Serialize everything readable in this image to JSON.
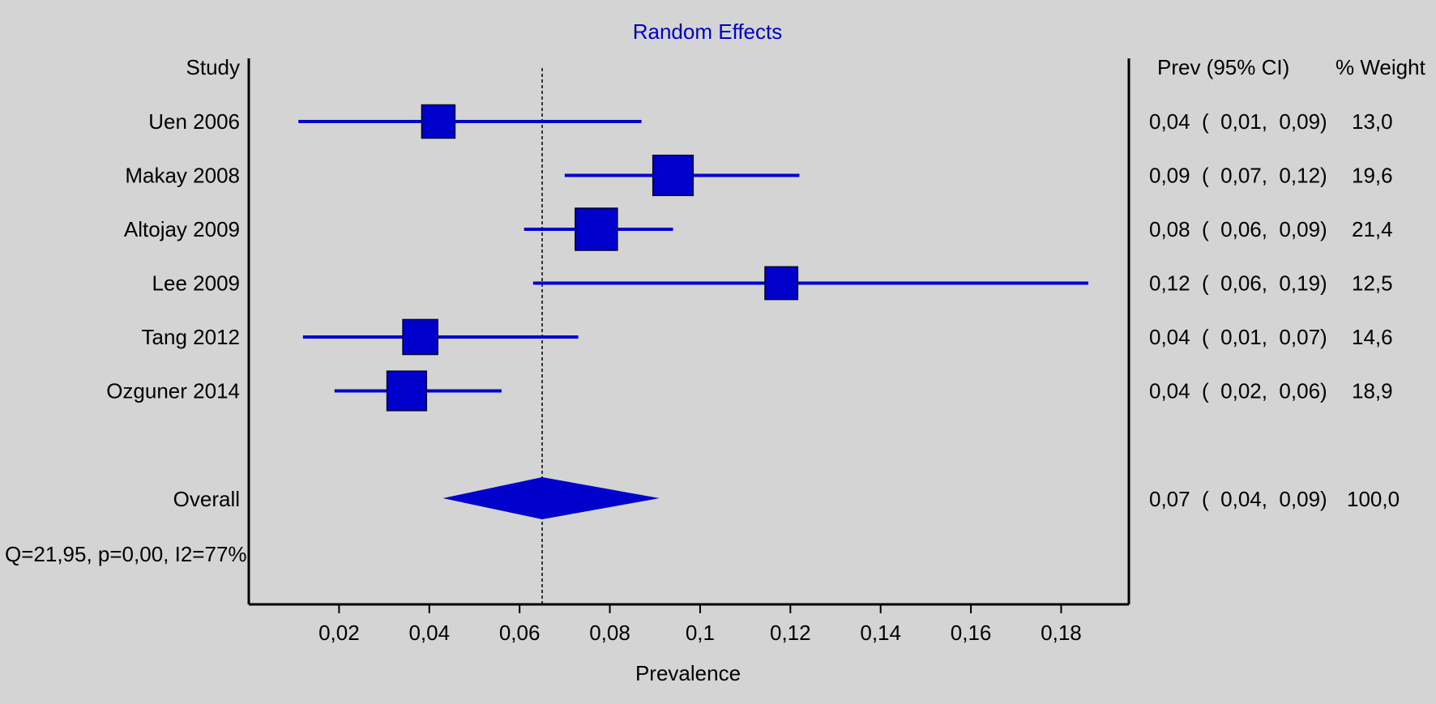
{
  "chart_data": {
    "type": "forest",
    "title": "Random Effects",
    "xlabel": "Prevalence",
    "study_header": "Study",
    "ci_header": "Prev (95% CI)",
    "weight_header": "% Weight",
    "xlim": [
      0.0,
      0.195
    ],
    "xticks": [
      0.02,
      0.04,
      0.06,
      0.08,
      0.1,
      0.12,
      0.14,
      0.16,
      0.18
    ],
    "xtick_labels": [
      "0,02",
      "0,04",
      "0,06",
      "0,08",
      "0,1",
      "0,12",
      "0,14",
      "0,16",
      "0,18"
    ],
    "reference_line": 0.065,
    "studies": [
      {
        "name": "Uen 2006",
        "prev": 0.042,
        "lower": 0.011,
        "upper": 0.087,
        "ci_text": "0,04  (  0,01,  0,09)",
        "weight": 13.0,
        "weight_text": "13,0"
      },
      {
        "name": "Makay 2008",
        "prev": 0.094,
        "lower": 0.07,
        "upper": 0.122,
        "ci_text": "0,09  (  0,07,  0,12)",
        "weight": 19.6,
        "weight_text": "19,6"
      },
      {
        "name": "Altojay 2009",
        "prev": 0.077,
        "lower": 0.061,
        "upper": 0.094,
        "ci_text": "0,08  (  0,06,  0,09)",
        "weight": 21.4,
        "weight_text": "21,4"
      },
      {
        "name": "Lee 2009",
        "prev": 0.118,
        "lower": 0.063,
        "upper": 0.186,
        "ci_text": "0,12  (  0,06,  0,19)",
        "weight": 12.5,
        "weight_text": "12,5"
      },
      {
        "name": "Tang 2012",
        "prev": 0.038,
        "lower": 0.012,
        "upper": 0.073,
        "ci_text": "0,04  (  0,01,  0,07)",
        "weight": 14.6,
        "weight_text": "14,6"
      },
      {
        "name": "Ozguner 2014",
        "prev": 0.035,
        "lower": 0.019,
        "upper": 0.056,
        "ci_text": "0,04  (  0,02,  0,06)",
        "weight": 18.9,
        "weight_text": "18,9"
      }
    ],
    "overall": {
      "name": "Overall",
      "prev": 0.065,
      "lower": 0.043,
      "upper": 0.091,
      "ci_text": "0,07  (  0,04,  0,09)",
      "weight_text": "100,0"
    },
    "heterogeneity": "Q=21,95, p=0,00, I2=77%",
    "colors": {
      "marker": "#0000cc",
      "line": "#0000cc",
      "title": "#0000cc",
      "axis": "#000000",
      "background": "#d4d4d4"
    }
  }
}
